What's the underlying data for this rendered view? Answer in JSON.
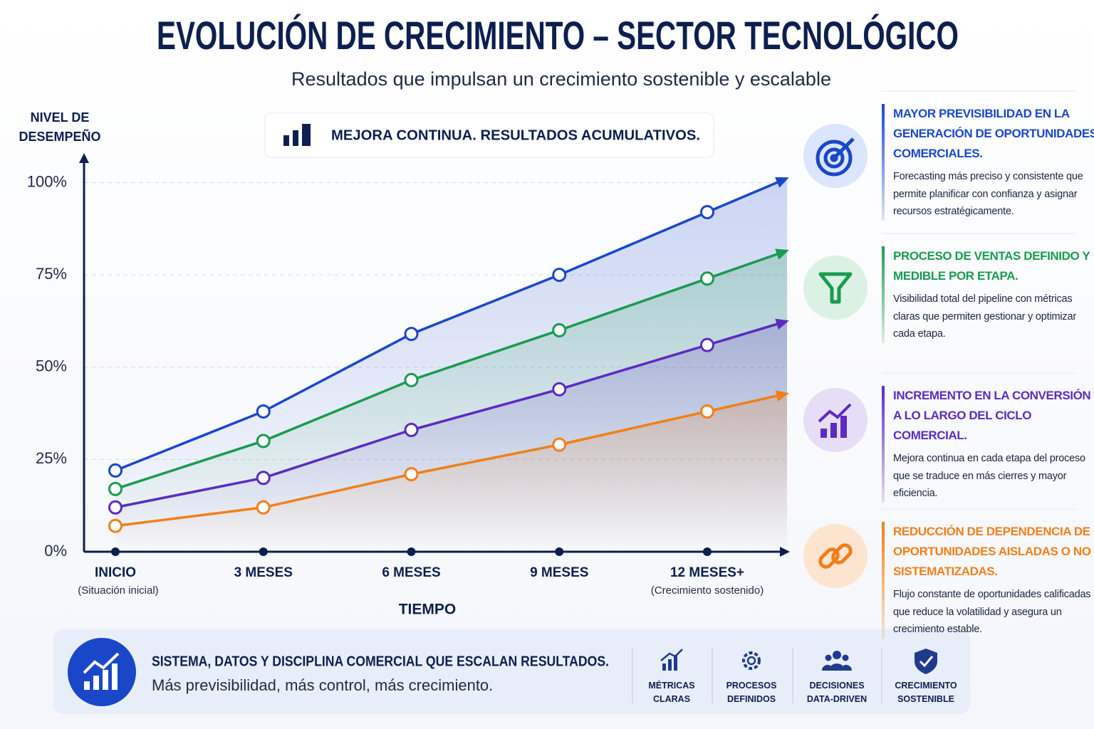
{
  "chart_data": {
    "type": "line",
    "title": "EVOLUCIÓN DE CRECIMIENTO – SECTOR TECNOLÓGICO",
    "subtitle": "Resultados que impulsan un crecimiento sostenible y escalable",
    "annotation": "MEJORA CONTINUA. RESULTADOS ACUMULATIVOS.",
    "y_label": "NIVEL DE DESEMPEÑO",
    "x_label": "TIEMPO",
    "categories": [
      "INICIO",
      "3 MESES",
      "6 MESES",
      "9 MESES",
      "12 MESES+"
    ],
    "category_notes": [
      "(Situación inicial)",
      null,
      null,
      null,
      "(Crecimiento sostenido)"
    ],
    "ylim": [
      0,
      108
    ],
    "yticks": [
      {
        "value": 0,
        "label": "0%"
      },
      {
        "value": 25,
        "label": "25%"
      },
      {
        "value": 50,
        "label": "50%"
      },
      {
        "value": 75,
        "label": "75%"
      },
      {
        "value": 100,
        "label": "100%"
      }
    ],
    "grid": true,
    "series": [
      {
        "color": "#1a47c8",
        "values": [
          22,
          38,
          59,
          75,
          92
        ]
      },
      {
        "color": "#1a9b4f",
        "values": [
          17,
          30,
          46.5,
          60,
          74
        ]
      },
      {
        "color": "#5b2bc0",
        "values": [
          12,
          20,
          33,
          44,
          56
        ]
      },
      {
        "color": "#f07f1a",
        "values": [
          7,
          12,
          21,
          29,
          38
        ]
      }
    ]
  },
  "panels": [
    {
      "color": "#1a47c8",
      "title": "MAYOR PREVISIBILIDAD EN LA GENERACIÓN DE OPORTUNIDADES COMERCIALES.",
      "text": "Forecasting más preciso y consistente que permite planificar con confianza y asignar recursos estratégicamente."
    },
    {
      "color": "#1a9b4f",
      "title": "PROCESO DE VENTAS DEFINIDO Y MEDIBLE POR ETAPA.",
      "text": "Visibilidad total del pipeline con métricas claras que permiten gestionar y optimizar cada etapa."
    },
    {
      "color": "#5b2bc0",
      "title": "INCREMENTO EN LA CONVERSIÓN A LO LARGO DEL CICLO COMERCIAL.",
      "text": "Mejora continua en cada etapa del proceso que se traduce en más cierres y mayor eficiencia."
    },
    {
      "color": "#f07f1a",
      "title": "REDUCCIÓN DE DEPENDENCIA DE OPORTUNIDADES AISLADAS O NO SISTEMATIZADAS.",
      "text": "Flujo constante de oportunidades calificadas que reduce la volatilidad y asegura un crecimiento estable."
    }
  ],
  "footer": {
    "headline": "SISTEMA, DATOS Y DISCIPLINA COMERCIAL QUE ESCALAN RESULTADOS.",
    "text": "Más previsibilidad, más control, más crecimiento.",
    "features": [
      "MÉTRICAS CLARAS",
      "PROCESOS DEFINIDOS",
      "DECISIONES DATA-DRIVEN",
      "CRECIMIENTO SOSTENIBLE"
    ]
  }
}
